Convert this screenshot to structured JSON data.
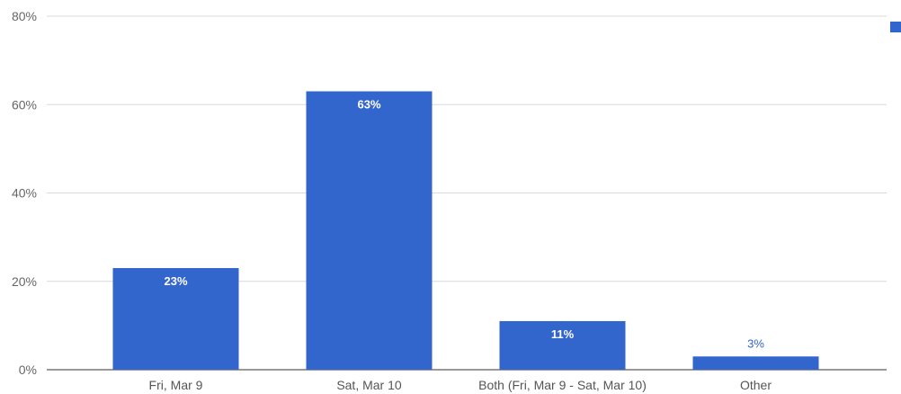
{
  "chart_data": {
    "type": "bar",
    "categories": [
      "Fri, Mar 9",
      "Sat, Mar 10",
      "Both (Fri, Mar 9 - Sat, Mar 10)",
      "Other"
    ],
    "series": [
      {
        "values": [
          23,
          63,
          11,
          3
        ]
      }
    ],
    "data_labels": [
      "23%",
      "63%",
      "11%",
      "3%"
    ],
    "y_ticks": [
      0,
      20,
      40,
      60,
      80
    ],
    "y_tick_labels": [
      "0%",
      "20%",
      "40%",
      "60%",
      "80%"
    ],
    "ylim": [
      0,
      80
    ],
    "grid": true,
    "legend": "top-right",
    "bar_color": "#3366cc",
    "label_inside_color": "#ffffff",
    "label_outside_color": "#3366cc"
  }
}
